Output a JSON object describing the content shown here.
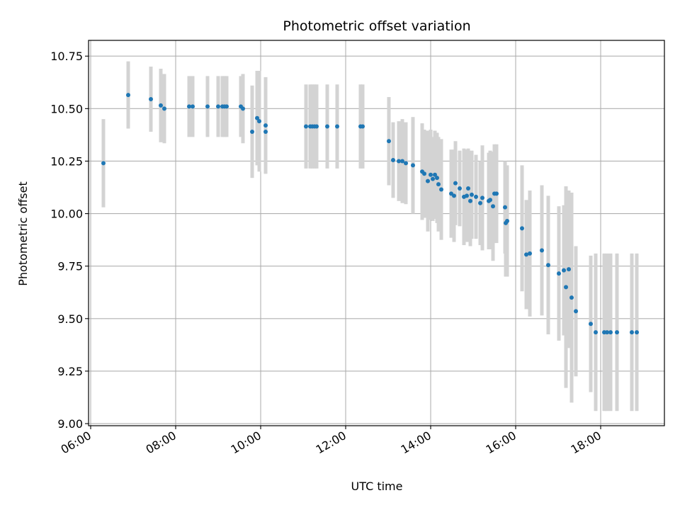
{
  "chart_data": {
    "type": "scatter",
    "title": "Photometric offset variation",
    "xlabel": "UTC time",
    "ylabel": "Photometric offset",
    "xlim": [
      5.95,
      19.5
    ],
    "ylim": [
      8.99,
      10.825
    ],
    "x_ticks": [
      6,
      8,
      10,
      12,
      14,
      16,
      18
    ],
    "x_tick_labels": [
      "06:00",
      "08:00",
      "10:00",
      "12:00",
      "14:00",
      "16:00",
      "18:00"
    ],
    "y_ticks": [
      9.0,
      9.25,
      9.5,
      9.75,
      10.0,
      10.25,
      10.5,
      10.75
    ],
    "y_tick_labels": [
      "9.00",
      "9.25",
      "9.50",
      "9.75",
      "10.00",
      "10.25",
      "10.50",
      "10.75"
    ],
    "grid": true,
    "point_color": "#1f77b4",
    "errorbar_color": "#d3d3d3",
    "series": [
      {
        "x_time": [
          "06:18",
          "06:53",
          "07:25",
          "07:39",
          "07:44",
          "08:19",
          "08:24",
          "08:45",
          "09:00",
          "09:06",
          "09:09",
          "09:12",
          "09:32",
          "09:35",
          "09:48",
          "09:55",
          "09:58",
          "10:07",
          "10:07",
          "11:04",
          "11:10",
          "11:13",
          "11:16",
          "11:19",
          "11:34",
          "11:48",
          "12:21",
          "12:24",
          "13:01",
          "13:07",
          "13:15",
          "13:20",
          "13:25",
          "13:35",
          "13:48",
          "13:51",
          "13:56",
          "14:00",
          "14:03",
          "14:06",
          "14:09",
          "14:11",
          "14:15",
          "14:29",
          "14:33",
          "14:35",
          "14:41",
          "14:47",
          "14:51",
          "14:53",
          "14:56",
          "14:58",
          "15:04",
          "15:10",
          "15:13",
          "15:22",
          "15:24",
          "15:28",
          "15:30",
          "15:33",
          "15:45",
          "15:46",
          "15:48",
          "16:09",
          "16:15",
          "16:20",
          "16:37",
          "16:46",
          "17:01",
          "17:08",
          "17:11",
          "17:15",
          "17:19",
          "17:25",
          "17:46",
          "17:53",
          "18:05",
          "18:09",
          "18:14",
          "18:23",
          "18:44",
          "18:51"
        ],
        "y": [
          10.24,
          10.565,
          10.545,
          10.515,
          10.5,
          10.51,
          10.51,
          10.51,
          10.51,
          10.51,
          10.51,
          10.51,
          10.51,
          10.5,
          10.39,
          10.455,
          10.44,
          10.42,
          10.39,
          10.415,
          10.415,
          10.415,
          10.415,
          10.415,
          10.415,
          10.415,
          10.415,
          10.415,
          10.345,
          10.255,
          10.25,
          10.25,
          10.24,
          10.23,
          10.2,
          10.19,
          10.155,
          10.185,
          10.165,
          10.185,
          10.17,
          10.14,
          10.115,
          10.095,
          10.085,
          10.145,
          10.12,
          10.08,
          10.085,
          10.12,
          10.06,
          10.09,
          10.08,
          10.05,
          10.075,
          10.06,
          10.065,
          10.035,
          10.095,
          10.095,
          10.03,
          9.955,
          9.965,
          9.93,
          9.805,
          9.81,
          9.825,
          9.755,
          9.715,
          9.73,
          9.65,
          9.735,
          9.6,
          9.535,
          9.475,
          9.435,
          9.435,
          9.435,
          9.435,
          9.435,
          9.435,
          9.435
        ],
        "err": [
          0.21,
          0.16,
          0.155,
          0.175,
          0.165,
          0.145,
          0.145,
          0.145,
          0.145,
          0.145,
          0.145,
          0.145,
          0.145,
          0.165,
          0.22,
          0.225,
          0.24,
          0.23,
          0.2,
          0.2,
          0.2,
          0.2,
          0.2,
          0.2,
          0.2,
          0.2,
          0.2,
          0.2,
          0.21,
          0.18,
          0.19,
          0.2,
          0.195,
          0.23,
          0.23,
          0.21,
          0.24,
          0.215,
          0.2,
          0.21,
          0.215,
          0.225,
          0.24,
          0.21,
          0.22,
          0.2,
          0.18,
          0.23,
          0.22,
          0.19,
          0.215,
          0.21,
          0.2,
          0.2,
          0.25,
          0.23,
          0.235,
          0.26,
          0.235,
          0.235,
          0.22,
          0.255,
          0.265,
          0.3,
          0.26,
          0.3,
          0.31,
          0.33,
          0.32,
          0.31,
          0.48,
          0.375,
          0.5,
          0.31,
          0.325,
          0.375,
          0.375,
          0.375,
          0.375,
          0.375,
          0.375,
          0.375
        ]
      }
    ]
  }
}
